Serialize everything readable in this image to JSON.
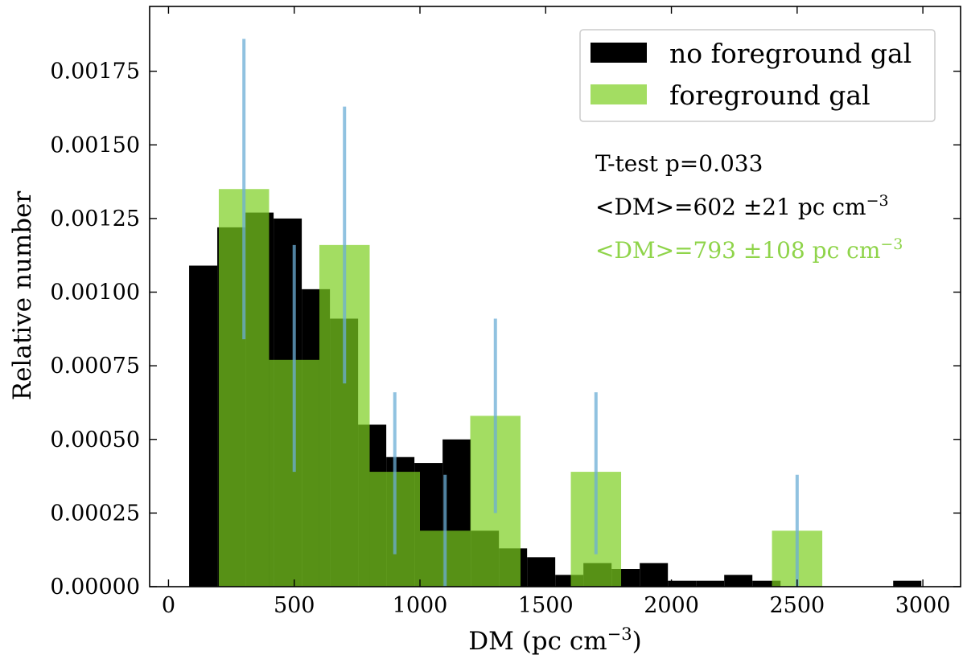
{
  "chart_data": {
    "type": "bar",
    "xlabel": "DM (pc cm",
    "xlabel_sup": "−3",
    "xlabel_tail": ")",
    "ylabel": "Relative number",
    "xlim": [
      -75,
      3150
    ],
    "ylim": [
      0,
      0.00197
    ],
    "xticks": [
      0,
      500,
      1000,
      1500,
      2000,
      2500,
      3000
    ],
    "xtick_labels": [
      "0",
      "500",
      "1000",
      "1500",
      "2000",
      "2500",
      "3000"
    ],
    "yticks": [
      0,
      0.00025,
      0.0005,
      0.00075,
      0.001,
      0.00125,
      0.0015,
      0.00175
    ],
    "ytick_labels": [
      "0.00000",
      "0.00025",
      "0.00050",
      "0.00075",
      "0.00100",
      "0.00125",
      "0.00150",
      "0.00175"
    ],
    "grid": false,
    "legend_position": "top-right",
    "series": [
      {
        "name": "no foreground gal",
        "color": "#000000",
        "opacity": 1,
        "bins": [
          {
            "x0": 82,
            "x1": 194,
            "value": 0.00109
          },
          {
            "x0": 194,
            "x1": 306,
            "value": 0.00122
          },
          {
            "x0": 306,
            "x1": 418,
            "value": 0.00127
          },
          {
            "x0": 418,
            "x1": 530,
            "value": 0.00125
          },
          {
            "x0": 530,
            "x1": 642,
            "value": 0.00101
          },
          {
            "x0": 642,
            "x1": 754,
            "value": 0.00091
          },
          {
            "x0": 754,
            "x1": 866,
            "value": 0.00055
          },
          {
            "x0": 866,
            "x1": 978,
            "value": 0.00044
          },
          {
            "x0": 978,
            "x1": 1090,
            "value": 0.00042
          },
          {
            "x0": 1090,
            "x1": 1202,
            "value": 0.0005
          },
          {
            "x0": 1202,
            "x1": 1314,
            "value": 0.00019
          },
          {
            "x0": 1314,
            "x1": 1426,
            "value": 0.00013
          },
          {
            "x0": 1426,
            "x1": 1538,
            "value": 0.0001
          },
          {
            "x0": 1538,
            "x1": 1650,
            "value": 4e-05
          },
          {
            "x0": 1650,
            "x1": 1762,
            "value": 8e-05
          },
          {
            "x0": 1762,
            "x1": 1874,
            "value": 6e-05
          },
          {
            "x0": 1874,
            "x1": 1986,
            "value": 8e-05
          },
          {
            "x0": 1986,
            "x1": 2098,
            "value": 2e-05
          },
          {
            "x0": 2098,
            "x1": 2210,
            "value": 2e-05
          },
          {
            "x0": 2210,
            "x1": 2322,
            "value": 4e-05
          },
          {
            "x0": 2322,
            "x1": 2434,
            "value": 2e-05
          },
          {
            "x0": 2434,
            "x1": 2546,
            "value": 0
          },
          {
            "x0": 2546,
            "x1": 2658,
            "value": 0
          },
          {
            "x0": 2658,
            "x1": 2770,
            "value": 0
          },
          {
            "x0": 2770,
            "x1": 2882,
            "value": 0
          },
          {
            "x0": 2882,
            "x1": 2994,
            "value": 2e-05
          }
        ]
      },
      {
        "name": "foreground gal",
        "color": "#7ccf20",
        "opacity": 0.7,
        "bins": [
          {
            "x0": 200,
            "x1": 400,
            "value": 0.00135
          },
          {
            "x0": 400,
            "x1": 600,
            "value": 0.00077
          },
          {
            "x0": 600,
            "x1": 800,
            "value": 0.00116
          },
          {
            "x0": 800,
            "x1": 1000,
            "value": 0.00039
          },
          {
            "x0": 1000,
            "x1": 1200,
            "value": 0.00019
          },
          {
            "x0": 1200,
            "x1": 1400,
            "value": 0.00058
          },
          {
            "x0": 1400,
            "x1": 1600,
            "value": 0
          },
          {
            "x0": 1600,
            "x1": 1800,
            "value": 0.00039
          },
          {
            "x0": 1800,
            "x1": 2000,
            "value": 0
          },
          {
            "x0": 2000,
            "x1": 2200,
            "value": 0
          },
          {
            "x0": 2200,
            "x1": 2400,
            "value": 0
          },
          {
            "x0": 2400,
            "x1": 2600,
            "value": 0.00019
          }
        ]
      }
    ],
    "error_bars": {
      "color": "#6baed6",
      "opacity": 0.75,
      "items": [
        {
          "x": 300,
          "low": 0.00084,
          "high": 0.00186
        },
        {
          "x": 500,
          "low": 0.00039,
          "high": 0.00116
        },
        {
          "x": 700,
          "low": 0.00069,
          "high": 0.00163
        },
        {
          "x": 900,
          "low": 0.00011,
          "high": 0.00066
        },
        {
          "x": 1100,
          "low": 0,
          "high": 0.00038
        },
        {
          "x": 1300,
          "low": 0.00025,
          "high": 0.00091
        },
        {
          "x": 1700,
          "low": 0.00011,
          "high": 0.00066
        },
        {
          "x": 2500,
          "low": 0,
          "high": 0.00038
        }
      ]
    },
    "annotations": [
      {
        "text": "T-test p=0.033",
        "sup": "",
        "color": "#000000"
      },
      {
        "text": "<DM>=602 ±21 pc cm",
        "sup": "−3",
        "color": "#000000"
      },
      {
        "text": "<DM>=793 ±108 pc cm",
        "sup": "−3",
        "color": "#8fd44a"
      }
    ]
  }
}
